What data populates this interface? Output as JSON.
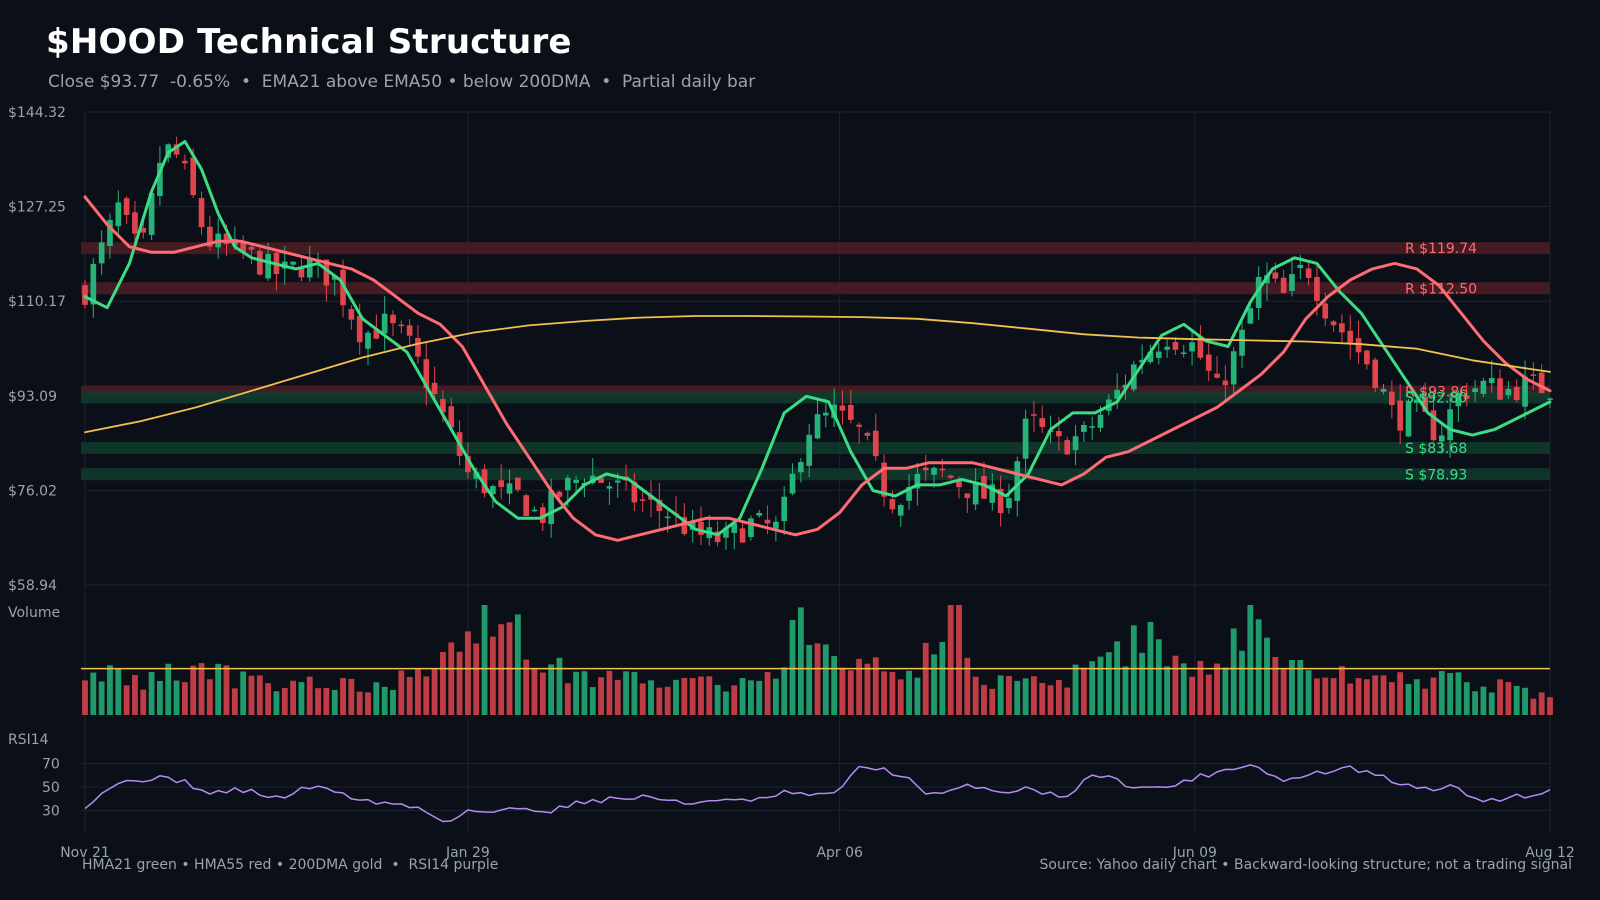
{
  "header": {
    "title": "$HOOD Technical Structure",
    "subtitle": "Close $93.77  -0.65%  •  EMA21 above EMA50 • below 200DMA  •  Partial daily bar"
  },
  "footer": {
    "legend_note": "HMA21 green • HMA55 red • 200DMA gold  •  RSI14 purple",
    "source_note": "Source: Yahoo daily chart • Backward-looking structure; not a trading signal"
  },
  "colors": {
    "background": "#0b0f17",
    "grid": "#1c2330",
    "up": "#26b37a",
    "down": "#e0444d",
    "hma21": "#3ddc84",
    "hma55": "#ff6b72",
    "dma200": "#f2c14e",
    "rsi": "#b58cf0",
    "resistance_band": "#4a1c25",
    "support_band": "#0f3a2c",
    "volume_avg": "#f2c14e"
  },
  "chart_data": {
    "type": "candlestick",
    "panels": [
      "price",
      "volume",
      "rsi"
    ],
    "price_axis": {
      "ticks": [
        "$144.32",
        "$127.25",
        "$110.17",
        "$93.09",
        "$76.02",
        "$58.94"
      ],
      "tick_values": [
        144.32,
        127.25,
        110.17,
        93.09,
        76.02,
        58.94
      ],
      "ylim": [
        58.94,
        144.32
      ]
    },
    "x_axis": {
      "ticks": [
        "Nov 21",
        "Jan 29",
        "Apr 06",
        "Jun 09",
        "Aug 12"
      ],
      "tick_days": [
        0,
        69,
        136,
        200,
        264
      ],
      "xlim": [
        0,
        264
      ]
    },
    "levels": [
      {
        "label": "R $119.74",
        "value": 119.74,
        "kind": "resistance"
      },
      {
        "label": "R $112.50",
        "value": 112.5,
        "kind": "resistance"
      },
      {
        "label": "R $93.86",
        "value": 93.86,
        "kind": "resistance"
      },
      {
        "label": "S $92.80",
        "value": 92.8,
        "kind": "support"
      },
      {
        "label": "S $83.68",
        "value": 83.68,
        "kind": "support"
      },
      {
        "label": "S $78.93",
        "value": 78.93,
        "kind": "support"
      }
    ],
    "close_key": {
      "days": [
        0,
        6,
        10,
        14,
        17,
        19,
        22,
        25,
        30,
        35,
        40,
        45,
        50,
        54,
        58,
        62,
        66,
        69,
        72,
        75,
        78,
        82,
        86,
        90,
        95,
        100,
        105,
        110,
        115,
        120,
        125,
        130,
        135,
        140,
        145,
        150,
        155,
        158,
        162,
        166,
        170,
        175,
        180,
        185,
        190,
        195,
        200,
        204,
        208,
        212,
        216,
        220,
        224,
        228,
        232,
        236,
        240,
        244,
        248,
        252,
        256,
        260,
        264
      ],
      "closes": [
        112,
        127,
        118,
        138,
        136,
        130,
        121,
        120,
        118,
        115,
        117,
        114,
        104,
        106,
        103,
        95,
        86,
        79,
        77,
        75,
        75,
        71,
        76,
        79,
        77,
        74,
        72,
        68,
        67,
        70,
        69,
        87,
        90,
        86,
        74,
        78,
        79,
        77,
        75,
        74,
        89,
        84,
        86,
        92,
        100,
        104,
        102,
        94,
        102,
        115,
        111,
        117,
        108,
        103,
        98,
        89,
        90,
        86,
        94,
        95,
        94,
        95,
        94.5
      ]
    },
    "series": [
      {
        "name": "HMA21",
        "color_key": "hma21",
        "x": [
          0,
          4,
          8,
          12,
          15,
          18,
          21,
          24,
          27,
          30,
          34,
          38,
          42,
          46,
          50,
          54,
          58,
          62,
          66,
          70,
          74,
          78,
          82,
          86,
          90,
          94,
          98,
          102,
          106,
          110,
          114,
          118,
          122,
          126,
          130,
          134,
          138,
          142,
          146,
          150,
          154,
          158,
          162,
          166,
          170,
          174,
          178,
          182,
          186,
          190,
          194,
          198,
          202,
          206,
          210,
          214,
          218,
          222,
          226,
          230,
          234,
          238,
          242,
          246,
          250,
          254,
          258,
          262,
          264
        ],
        "y": [
          111,
          109,
          117,
          130,
          137,
          139,
          134,
          126,
          120,
          118,
          117,
          116,
          117,
          114,
          107,
          104,
          101,
          94,
          87,
          80,
          74,
          71,
          71,
          73,
          77,
          79,
          78,
          75,
          72,
          69,
          68,
          71,
          80,
          90,
          93,
          92,
          83,
          76,
          75,
          77,
          77,
          78,
          77,
          75,
          79,
          87,
          90,
          90,
          92,
          98,
          104,
          106,
          103,
          102,
          110,
          116,
          118,
          117,
          112,
          108,
          102,
          96,
          90,
          87,
          86,
          87,
          89,
          91,
          92
        ]
      },
      {
        "name": "HMA55",
        "color_key": "hma55",
        "x": [
          0,
          4,
          8,
          12,
          16,
          20,
          24,
          28,
          32,
          36,
          40,
          44,
          48,
          52,
          56,
          60,
          64,
          68,
          72,
          76,
          80,
          84,
          88,
          92,
          96,
          100,
          104,
          108,
          112,
          116,
          120,
          124,
          128,
          132,
          136,
          140,
          144,
          148,
          152,
          156,
          160,
          164,
          168,
          172,
          176,
          180,
          184,
          188,
          192,
          196,
          200,
          204,
          208,
          212,
          216,
          220,
          224,
          228,
          232,
          236,
          240,
          244,
          248,
          252,
          256,
          260,
          264
        ],
        "y": [
          129,
          124,
          120,
          119,
          119,
          120,
          121,
          121,
          120,
          119,
          118,
          117,
          116,
          114,
          111,
          108,
          106,
          102,
          95,
          88,
          82,
          76,
          71,
          68,
          67,
          68,
          69,
          70,
          71,
          71,
          70,
          69,
          68,
          69,
          72,
          77,
          80,
          80,
          81,
          81,
          81,
          80,
          79,
          78,
          77,
          79,
          82,
          83,
          85,
          87,
          89,
          91,
          94,
          97,
          101,
          107,
          111,
          114,
          116,
          117,
          116,
          113,
          108,
          103,
          99,
          96,
          94
        ]
      },
      {
        "name": "200DMA",
        "color_key": "dma200",
        "x": [
          0,
          10,
          20,
          30,
          40,
          50,
          60,
          70,
          80,
          90,
          100,
          110,
          120,
          130,
          140,
          150,
          160,
          170,
          180,
          190,
          200,
          210,
          220,
          230,
          240,
          250,
          260,
          264
        ],
        "y": [
          86.5,
          88.5,
          91,
          94,
          97,
          100,
          102.5,
          104.5,
          105.8,
          106.6,
          107.2,
          107.5,
          107.5,
          107.4,
          107.3,
          107,
          106.2,
          105.2,
          104.2,
          103.6,
          103.3,
          103.1,
          102.9,
          102.4,
          101.6,
          99.5,
          98,
          97.4
        ]
      }
    ],
    "volume": {
      "panel_label": "Volume",
      "average_line": true,
      "anchor_days": [
        0,
        8,
        18,
        30,
        45,
        55,
        65,
        70,
        75,
        80,
        84,
        90,
        100,
        110,
        120,
        125,
        128,
        132,
        140,
        150,
        157,
        160,
        165,
        175,
        185,
        190,
        195,
        205,
        210,
        215,
        225,
        235,
        245,
        255,
        264
      ],
      "anchor_values": [
        0.45,
        0.3,
        0.4,
        0.32,
        0.28,
        0.3,
        0.45,
        0.75,
        1.0,
        0.55,
        0.45,
        0.35,
        0.32,
        0.3,
        0.28,
        0.45,
        0.95,
        0.55,
        0.4,
        0.45,
        1.0,
        0.35,
        0.3,
        0.3,
        0.45,
        0.8,
        0.45,
        0.5,
        0.95,
        0.45,
        0.4,
        0.35,
        0.32,
        0.28,
        0.15
      ]
    },
    "rsi": {
      "panel_label": "RSI14",
      "ticks": [
        "70",
        "50",
        "30"
      ],
      "tick_values": [
        70,
        50,
        30
      ],
      "ylim": [
        20,
        80
      ],
      "anchor_days": [
        0,
        5,
        12,
        18,
        22,
        28,
        35,
        40,
        45,
        50,
        55,
        60,
        65,
        69,
        74,
        78,
        84,
        90,
        96,
        102,
        108,
        114,
        120,
        126,
        132,
        136,
        140,
        144,
        148,
        152,
        156,
        160,
        165,
        170,
        176,
        182,
        188,
        194,
        198,
        204,
        210,
        216,
        222,
        228,
        234,
        240,
        246,
        252,
        258,
        264
      ],
      "anchor_values": [
        34,
        52,
        58,
        55,
        44,
        48,
        40,
        50,
        47,
        38,
        36,
        32,
        20,
        30,
        28,
        32,
        30,
        38,
        40,
        42,
        35,
        40,
        37,
        45,
        42,
        48,
        68,
        65,
        58,
        42,
        46,
        52,
        45,
        50,
        40,
        62,
        52,
        48,
        55,
        63,
        70,
        55,
        62,
        66,
        58,
        48,
        50,
        38,
        42,
        46
      ]
    }
  }
}
